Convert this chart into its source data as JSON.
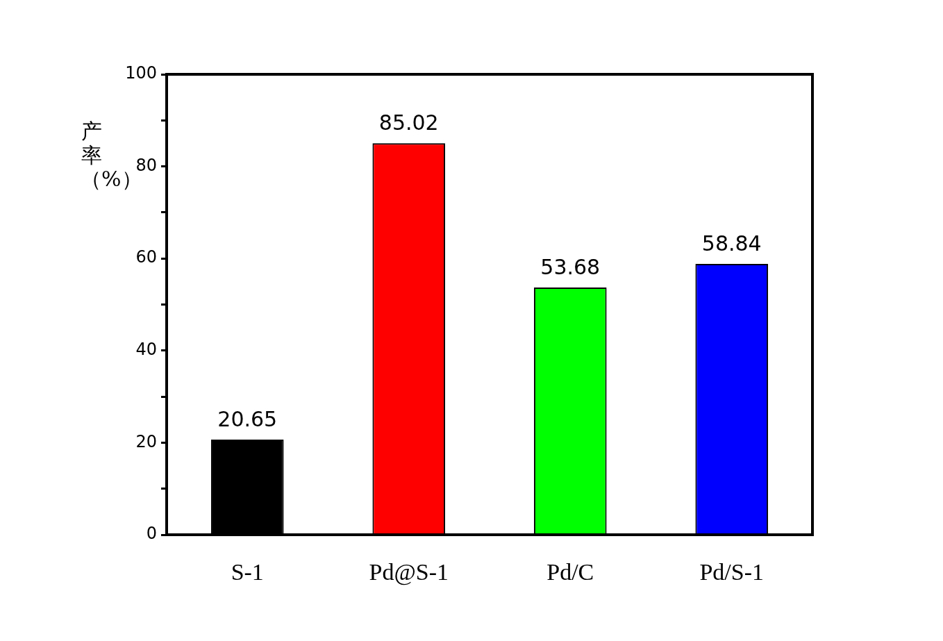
{
  "chart_data": {
    "type": "bar",
    "ylabel": "产率（%）",
    "categories": [
      "S-1",
      "Pd@S-1",
      "Pd/C",
      "Pd/S-1"
    ],
    "values": [
      20.65,
      85.02,
      53.68,
      58.84
    ],
    "colors": [
      "#000000",
      "#ff0000",
      "#00ff00",
      "#0000ff"
    ],
    "ylim": [
      0,
      100
    ],
    "yticks": [
      0,
      {
        "value": 10,
        "label": null
      },
      20,
      {
        "value": 30,
        "label": null
      },
      40,
      {
        "value": 50,
        "label": null
      },
      60,
      {
        "value": 70,
        "label": null
      },
      80,
      {
        "value": 90,
        "label": null
      },
      100
    ],
    "data_labels": true
  }
}
